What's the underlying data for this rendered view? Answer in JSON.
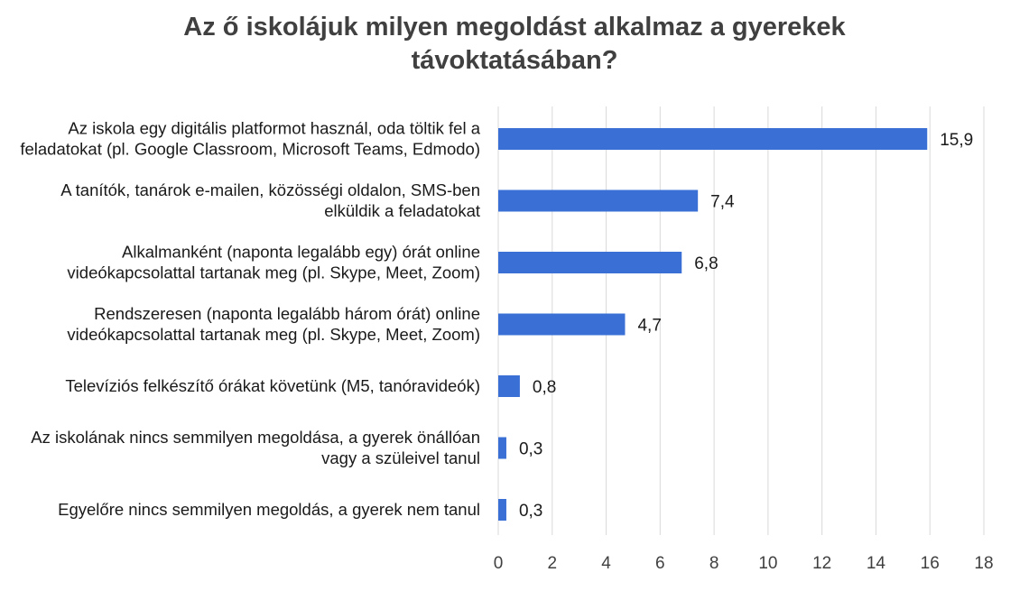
{
  "chart_data": {
    "type": "bar",
    "orientation": "horizontal",
    "title": [
      "Az ő iskolájuk milyen megoldást alkalmaz a gyerekek",
      "távoktatásában?"
    ],
    "categories": [
      [
        "Az iskola egy digitális platformot használ, oda töltik fel a",
        "feladatokat (pl. Google Classroom, Microsoft Teams, Edmodo)"
      ],
      [
        "A tanítók, tanárok e-mailen, közösségi oldalon, SMS-ben",
        "elküldik a feladatokat"
      ],
      [
        "Alkalmanként (naponta legalább egy) órát online",
        "videókapcsolattal tartanak meg (pl. Skype, Meet, Zoom)"
      ],
      [
        "Rendszeresen (naponta legalább három órát) online",
        "videókapcsolattal tartanak meg (pl. Skype, Meet, Zoom)"
      ],
      [
        "Televíziós felkészítő órákat követünk (M5, tanóravideók)"
      ],
      [
        "Az iskolának nincs semmilyen megoldása, a gyerek önállóan",
        "vagy a szüleivel tanul"
      ],
      [
        "Egyelőre nincs semmilyen megoldás, a gyerek nem tanul"
      ]
    ],
    "values": [
      15.9,
      7.4,
      6.8,
      4.7,
      0.8,
      0.3,
      0.3
    ],
    "value_labels": [
      "15,9",
      "7,4",
      "6,8",
      "4,7",
      "0,8",
      "0,3",
      "0,3"
    ],
    "xlim": [
      0,
      18
    ],
    "xticks": [
      0,
      2,
      4,
      6,
      8,
      10,
      12,
      14,
      16,
      18
    ],
    "grid": "vertical",
    "bar_color": "#3a6fd6"
  }
}
